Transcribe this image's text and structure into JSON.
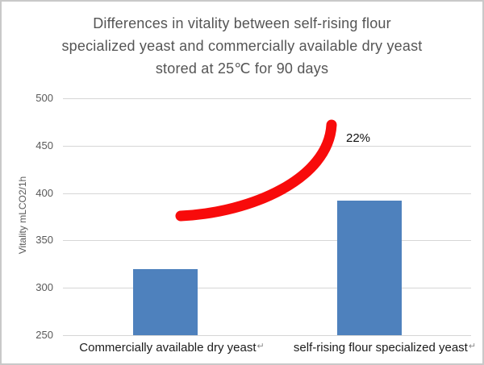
{
  "chart_data": {
    "type": "bar",
    "title_lines": [
      "Differences in vitality between self-rising flour",
      "specialized yeast and commercially available dry yeast",
      "stored at 25℃ for 90 days"
    ],
    "title": "Differences in vitality between self-rising flour specialized yeast and commercially available dry yeast stored at 25℃ for 90 days",
    "ylabel": "Vitality mLCO2/1h",
    "categories": [
      "Commercially available dry yeast",
      "self-rising flour specialized yeast"
    ],
    "values": [
      320,
      392
    ],
    "ylim": [
      250,
      500
    ],
    "yticks": [
      250,
      300,
      350,
      400,
      450,
      500
    ],
    "grid": true,
    "legend_position": "none",
    "annotation": "22%",
    "line_break_mark": "↵",
    "colors": {
      "bar": "#4e81bd",
      "arrow": "#f80b0b",
      "title_text": "#555555",
      "axis_text": "#595959",
      "category_text": "#1c1c1c",
      "gridline": "#d6d6d6",
      "frame_border": "#c9c9c9",
      "background": "#ffffff"
    }
  }
}
